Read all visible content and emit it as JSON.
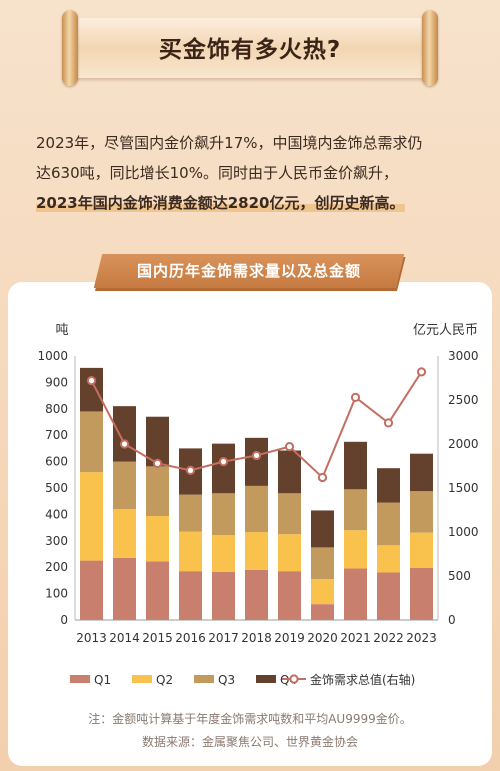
{
  "header": {
    "title": "买金饰有多火热?"
  },
  "intro": {
    "line1": "2023年，尽管国内金价飙升17%，中国境内金饰总需求仍",
    "line2": "达630吨，同比增长10%。同时由于人民币金价飙升，",
    "line3": "2023年国内金饰消费金额达2820亿元，创历史新高。"
  },
  "chart_title": "国内历年金饰需求量以及总金额",
  "chart_data": {
    "type": "bar",
    "stacked": true,
    "categories": [
      "2013",
      "2014",
      "2015",
      "2016",
      "2017",
      "2018",
      "2019",
      "2020",
      "2021",
      "2022",
      "2023"
    ],
    "series": [
      {
        "name": "Q1",
        "values": [
          225,
          235,
          222,
          185,
          182,
          190,
          185,
          60,
          195,
          180,
          198
        ],
        "color": "#c87f6e"
      },
      {
        "name": "Q2",
        "values": [
          335,
          185,
          172,
          150,
          140,
          143,
          140,
          95,
          145,
          103,
          133
        ],
        "color": "#f9c24c"
      },
      {
        "name": "Q3",
        "values": [
          230,
          180,
          188,
          140,
          158,
          175,
          155,
          120,
          155,
          162,
          157
        ],
        "color": "#c29a5e"
      },
      {
        "name": "Q4",
        "values": [
          165,
          210,
          188,
          175,
          188,
          182,
          162,
          140,
          180,
          130,
          142
        ],
        "color": "#63412c"
      }
    ],
    "line_series": {
      "name": "金饰需求总值(右轴)",
      "values": [
        2720,
        2000,
        1780,
        1700,
        1800,
        1870,
        1970,
        1620,
        2530,
        2240,
        2820
      ],
      "color": "#c46e61"
    },
    "ylabel_left": "吨",
    "ylabel_right": "亿元人民币",
    "ylim_left": [
      0,
      1000
    ],
    "ylim_right": [
      0,
      3000
    ],
    "yticks_left": [
      0,
      100,
      200,
      300,
      400,
      500,
      600,
      700,
      800,
      900,
      1000
    ],
    "yticks_right": [
      0,
      500,
      1000,
      1500,
      2000,
      2500,
      3000
    ],
    "grid": false,
    "legend_position": "bottom"
  },
  "footnote": "注：金额吨计算基于年度金饰需求吨数和平均AU9999金价。",
  "source": "数据来源：金属聚焦公司、世界黄金协会"
}
